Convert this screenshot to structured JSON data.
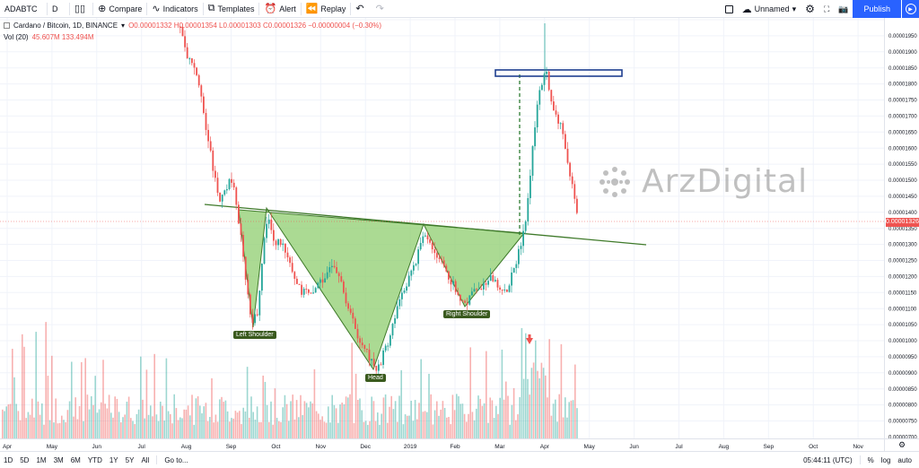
{
  "toolbar": {
    "symbol": "ADABTC",
    "interval": "D",
    "compare": "Compare",
    "indicators": "Indicators",
    "templates": "Templates",
    "alert": "Alert",
    "replay": "Replay",
    "layout_name": "Unnamed",
    "publish": "Publish"
  },
  "legend": {
    "pair": "Cardano / Bitcoin, 1D, BINANCE",
    "ohlc": "O0.00001332 H0.00001354 L0.00001303 C0.00001326 −0.00000004 (−0.30%)",
    "volume_label": "Vol (20)",
    "volume_values": "45.607M  133.494M"
  },
  "watermark": "ArzDigital",
  "annotations": {
    "left_shoulder": "Left Shoulder",
    "head": "Head",
    "right_shoulder": "Right Shoulder"
  },
  "price_axis": {
    "ticks": [
      "0.00001950",
      "0.00001900",
      "0.00001850",
      "0.00001800",
      "0.00001750",
      "0.00001700",
      "0.00001650",
      "0.00001600",
      "0.00001550",
      "0.00001500",
      "0.00001450",
      "0.00001400",
      "0.00001350",
      "0.00001300",
      "0.00001250",
      "0.00001200",
      "0.00001150",
      "0.00001100",
      "0.00001050",
      "0.00001000",
      "0.00000950",
      "0.00000900",
      "0.00000850",
      "0.00000800",
      "0.00000750",
      "0.00000700"
    ],
    "current_price": "0.00001326"
  },
  "time_axis": {
    "labels": [
      "Apr",
      "May",
      "Jun",
      "Jul",
      "Aug",
      "Sep",
      "Oct",
      "Nov",
      "Dec",
      "2019",
      "Feb",
      "Mar",
      "Apr",
      "May",
      "Jun",
      "Jul",
      "Aug",
      "Sep",
      "Oct",
      "Nov"
    ]
  },
  "bottom_bar": {
    "ranges": [
      "1D",
      "5D",
      "1M",
      "3M",
      "6M",
      "YTD",
      "1Y",
      "5Y",
      "All"
    ],
    "goto": "Go to...",
    "clock": "05:44:11 (UTC)",
    "percent": "%",
    "log": "log",
    "auto": "auto"
  },
  "colors": {
    "up": "#26a69a",
    "down": "#ef5350",
    "pattern_fill": "#8fce6f",
    "neckline": "#3f7a2a",
    "target_box": "#1f3f8f"
  }
}
